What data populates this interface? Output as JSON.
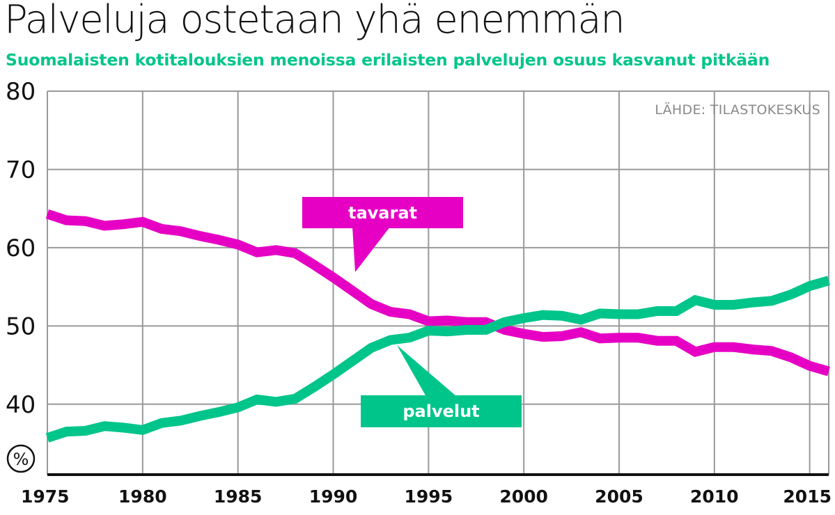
{
  "title": "Palveluja ostetaan yhä enemmän",
  "subtitle": "Suomalaisten kotitalouksien menoissa erilaisten palvelujen osuus kasvanut pitkään",
  "source": "LÄHDE: TILASTOKESKUS",
  "unit": "%",
  "colors": {
    "tavarat": "#e600c4",
    "palvelut": "#00c58a",
    "grid": "#999999",
    "text": "#111111",
    "source": "#888888"
  },
  "chart_data": {
    "type": "line",
    "x": [
      1975,
      1976,
      1977,
      1978,
      1979,
      1980,
      1981,
      1982,
      1983,
      1984,
      1985,
      1986,
      1987,
      1988,
      1989,
      1990,
      1991,
      1992,
      1993,
      1994,
      1995,
      1996,
      1997,
      1998,
      1999,
      2000,
      2001,
      2002,
      2003,
      2004,
      2005,
      2006,
      2007,
      2008,
      2009,
      2010,
      2011,
      2012,
      2013,
      2014,
      2015,
      2016
    ],
    "series": [
      {
        "name": "tavarat",
        "values": [
          64.3,
          63.5,
          63.4,
          62.8,
          63.0,
          63.3,
          62.4,
          62.1,
          61.5,
          61.0,
          60.4,
          59.4,
          59.7,
          59.3,
          57.8,
          56.2,
          54.5,
          52.8,
          51.8,
          51.5,
          50.6,
          50.7,
          50.5,
          50.5,
          49.5,
          49.0,
          48.6,
          48.7,
          49.2,
          48.4,
          48.5,
          48.5,
          48.1,
          48.1,
          46.7,
          47.3,
          47.3,
          47.0,
          46.8,
          46.0,
          44.9,
          44.2
        ]
      },
      {
        "name": "palvelut",
        "values": [
          35.7,
          36.5,
          36.6,
          37.2,
          37.0,
          36.7,
          37.6,
          37.9,
          38.5,
          39.0,
          39.6,
          40.6,
          40.3,
          40.7,
          42.2,
          43.8,
          45.5,
          47.2,
          48.2,
          48.5,
          49.4,
          49.3,
          49.5,
          49.5,
          50.5,
          51.0,
          51.4,
          51.3,
          50.8,
          51.6,
          51.5,
          51.5,
          51.9,
          51.9,
          53.3,
          52.7,
          52.7,
          53.0,
          53.2,
          54.0,
          55.1,
          55.8
        ]
      }
    ],
    "xlim": [
      1975,
      2016
    ],
    "ylim": [
      31,
      80
    ],
    "yticks": [
      "80",
      "70",
      "60",
      "50",
      "40"
    ],
    "xticks": [
      "1975",
      "1980",
      "1985",
      "1990",
      "1995",
      "2000",
      "2005",
      "2010",
      "2015"
    ],
    "grid": true,
    "annotations": [
      {
        "text": "tavarat",
        "series": "tavarat"
      },
      {
        "text": "palvelut",
        "series": "palvelut"
      }
    ]
  }
}
